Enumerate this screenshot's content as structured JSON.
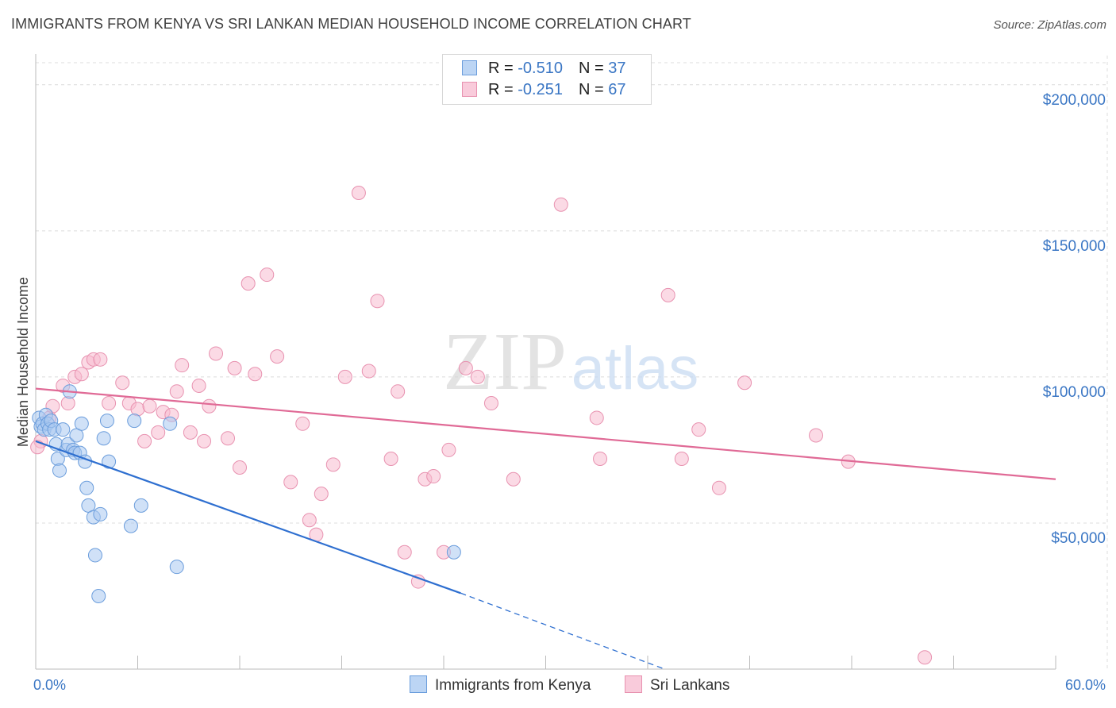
{
  "title": "IMMIGRANTS FROM KENYA VS SRI LANKAN MEDIAN HOUSEHOLD INCOME CORRELATION CHART",
  "source": "Source: ZipAtlas.com",
  "watermark": {
    "zip": "ZIP",
    "atlas": "atlas"
  },
  "legend": {
    "kenya": {
      "r_label": "R = ",
      "r_value": "-0.510",
      "n_label": "N = ",
      "n_value": "37"
    },
    "srilanka": {
      "r_label": "R = ",
      "r_value": "-0.251",
      "n_label": "N = ",
      "n_value": "67"
    }
  },
  "bottom_legend": {
    "kenya": "Immigrants from Kenya",
    "srilanka": "Sri Lankans"
  },
  "colors": {
    "kenya_fill": "#a9c8f0",
    "kenya_stroke": "#6b9ddc",
    "kenya_line": "#2e6fd0",
    "srilanka_fill": "#f7bcd0",
    "srilanka_stroke": "#e892b0",
    "srilanka_line": "#e06a96",
    "tick_text": "#3a76c4",
    "grid": "#dcdcdc"
  },
  "chart_data": {
    "type": "scatter",
    "title": "IMMIGRANTS FROM KENYA VS SRI LANKAN MEDIAN HOUSEHOLD INCOME CORRELATION CHART",
    "xlabel": "",
    "ylabel": "Median Household Income",
    "xlim": [
      0,
      60
    ],
    "ylim": [
      0,
      210000
    ],
    "x_tick_labels": [
      "0.0%",
      "60.0%"
    ],
    "y_ticks": [
      {
        "value": 50000,
        "label": "$50,000"
      },
      {
        "value": 100000,
        "label": "$100,000"
      },
      {
        "value": 150000,
        "label": "$150,000"
      },
      {
        "value": 200000,
        "label": "$200,000"
      }
    ],
    "grid": true,
    "legend_position": "top-center",
    "series": [
      {
        "name": "Immigrants from Kenya",
        "r": -0.51,
        "n": 37,
        "trend": {
          "x0": 0,
          "y0": 78000,
          "x1": 25,
          "y1": 26000,
          "dash_to_x": 37,
          "dash_to_y": 0
        },
        "points": [
          [
            0.2,
            86000
          ],
          [
            0.3,
            83000
          ],
          [
            0.4,
            84000
          ],
          [
            0.5,
            82000
          ],
          [
            0.6,
            87000
          ],
          [
            0.7,
            84000
          ],
          [
            0.8,
            82000
          ],
          [
            0.9,
            85000
          ],
          [
            1.1,
            82000
          ],
          [
            1.2,
            77000
          ],
          [
            1.3,
            72000
          ],
          [
            1.4,
            68000
          ],
          [
            1.6,
            82000
          ],
          [
            1.8,
            75000
          ],
          [
            1.9,
            77000
          ],
          [
            2.0,
            95000
          ],
          [
            2.2,
            75000
          ],
          [
            2.3,
            74000
          ],
          [
            2.4,
            80000
          ],
          [
            2.6,
            74000
          ],
          [
            2.7,
            84000
          ],
          [
            2.9,
            71000
          ],
          [
            3.0,
            62000
          ],
          [
            3.1,
            56000
          ],
          [
            3.4,
            52000
          ],
          [
            3.5,
            39000
          ],
          [
            3.7,
            25000
          ],
          [
            3.8,
            53000
          ],
          [
            4.0,
            79000
          ],
          [
            4.2,
            85000
          ],
          [
            4.3,
            71000
          ],
          [
            5.6,
            49000
          ],
          [
            5.8,
            85000
          ],
          [
            6.2,
            56000
          ],
          [
            7.9,
            84000
          ],
          [
            8.3,
            35000
          ],
          [
            24.6,
            40000
          ]
        ]
      },
      {
        "name": "Sri Lankans",
        "r": -0.251,
        "n": 67,
        "trend": {
          "x0": 0,
          "y0": 96000,
          "x1": 60,
          "y1": 65000
        },
        "points": [
          [
            0.3,
            78000
          ],
          [
            0.8,
            86000
          ],
          [
            1.0,
            90000
          ],
          [
            1.6,
            97000
          ],
          [
            1.9,
            91000
          ],
          [
            2.3,
            100000
          ],
          [
            2.7,
            101000
          ],
          [
            3.1,
            105000
          ],
          [
            3.4,
            106000
          ],
          [
            3.8,
            106000
          ],
          [
            4.3,
            91000
          ],
          [
            5.1,
            98000
          ],
          [
            5.5,
            91000
          ],
          [
            6.0,
            89000
          ],
          [
            6.4,
            78000
          ],
          [
            6.7,
            90000
          ],
          [
            7.2,
            81000
          ],
          [
            7.5,
            88000
          ],
          [
            8.0,
            87000
          ],
          [
            8.3,
            95000
          ],
          [
            8.6,
            104000
          ],
          [
            9.1,
            81000
          ],
          [
            9.6,
            97000
          ],
          [
            9.9,
            78000
          ],
          [
            10.2,
            90000
          ],
          [
            10.6,
            108000
          ],
          [
            11.3,
            79000
          ],
          [
            11.7,
            103000
          ],
          [
            12.0,
            69000
          ],
          [
            12.5,
            132000
          ],
          [
            12.9,
            101000
          ],
          [
            13.6,
            135000
          ],
          [
            14.2,
            107000
          ],
          [
            15.0,
            64000
          ],
          [
            15.7,
            84000
          ],
          [
            16.1,
            51000
          ],
          [
            16.5,
            46000
          ],
          [
            16.8,
            60000
          ],
          [
            17.5,
            70000
          ],
          [
            18.2,
            100000
          ],
          [
            19.0,
            163000
          ],
          [
            19.6,
            102000
          ],
          [
            20.1,
            126000
          ],
          [
            20.9,
            72000
          ],
          [
            21.3,
            95000
          ],
          [
            21.7,
            40000
          ],
          [
            22.5,
            30000
          ],
          [
            22.9,
            65000
          ],
          [
            23.4,
            66000
          ],
          [
            24.0,
            40000
          ],
          [
            24.3,
            75000
          ],
          [
            25.3,
            103000
          ],
          [
            26.0,
            100000
          ],
          [
            26.8,
            91000
          ],
          [
            28.1,
            65000
          ],
          [
            30.9,
            159000
          ],
          [
            33.0,
            86000
          ],
          [
            33.2,
            72000
          ],
          [
            37.2,
            128000
          ],
          [
            38.0,
            72000
          ],
          [
            39.0,
            82000
          ],
          [
            40.2,
            62000
          ],
          [
            41.7,
            98000
          ],
          [
            45.9,
            80000
          ],
          [
            47.8,
            71000
          ],
          [
            52.3,
            4000
          ],
          [
            0.1,
            76000
          ]
        ]
      }
    ]
  }
}
